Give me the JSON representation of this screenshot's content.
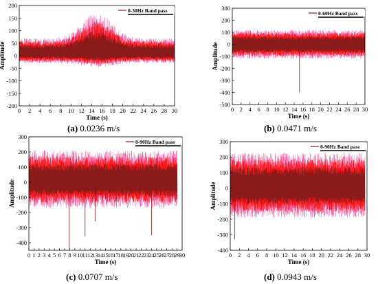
{
  "figures": [
    {
      "id": "a",
      "caption_tag": "(a)",
      "caption_value": "0.0236 m/s"
    },
    {
      "id": "b",
      "caption_tag": "(b)",
      "caption_value": "0.0471 m/s"
    },
    {
      "id": "c",
      "caption_tag": "(c)",
      "caption_value": "0.0707 m/s"
    },
    {
      "id": "d",
      "caption_tag": "(d)",
      "caption_value": "0.0943 m/s"
    }
  ],
  "colors": {
    "signal_dark": "#8b1a1a",
    "signal_bright": "#ff1a1a",
    "signal_pink": "#ff66aa",
    "axis": "#000000"
  },
  "chart_data": [
    {
      "type": "line",
      "xlabel": "Time (s)",
      "ylabel": "Amplitude",
      "xlim": [
        0,
        30
      ],
      "ylim": [
        -200,
        200
      ],
      "xticks": [
        0,
        2,
        4,
        6,
        8,
        10,
        12,
        14,
        16,
        18,
        20,
        22,
        24,
        26,
        28,
        30
      ],
      "yticks": [
        -200,
        -150,
        -100,
        -50,
        0,
        50,
        100,
        150,
        200
      ],
      "legend": "0-30Hz Band pass",
      "legend_position": "top-right",
      "series": [
        {
          "name": "0-30Hz Band pass",
          "x_range": [
            0,
            30
          ],
          "envelope": {
            "baseline": 10,
            "typical_peak": 60,
            "typical_trough": -40,
            "max_peak": 160,
            "max_peak_at": 15,
            "min_trough": -55
          }
        }
      ]
    },
    {
      "type": "line",
      "xlabel": "Time (s)",
      "ylabel": "Amplitude",
      "xlim": [
        0,
        30
      ],
      "ylim": [
        -500,
        300
      ],
      "xticks": [
        0,
        2,
        4,
        6,
        8,
        10,
        12,
        14,
        16,
        18,
        20,
        22,
        24,
        26,
        28,
        30
      ],
      "yticks": [
        -500,
        -400,
        -300,
        -200,
        -100,
        0,
        100,
        200,
        300
      ],
      "legend": "0-60Hz Band pass",
      "legend_position": "top-right",
      "series": [
        {
          "name": "0-60Hz Band pass",
          "x_range": [
            0,
            30
          ],
          "envelope": {
            "baseline": 0,
            "typical_peak": 120,
            "typical_trough": -120,
            "max_peak": 150,
            "min_trough": -400,
            "min_trough_at": 15.2
          }
        }
      ]
    },
    {
      "type": "line",
      "xlabel": "Time (s)",
      "ylabel": "Amplitude",
      "xlim": [
        0,
        30
      ],
      "ylim": [
        -450,
        300
      ],
      "xticks": [
        0,
        1,
        2,
        3,
        4,
        5,
        6,
        7,
        8,
        9,
        10,
        11,
        12,
        13,
        14,
        15,
        16,
        17,
        18,
        19,
        20,
        21,
        22,
        23,
        24,
        25,
        26,
        27,
        28,
        29,
        30
      ],
      "yticks": [
        -400,
        -300,
        -200,
        -100,
        0,
        100,
        200,
        300
      ],
      "legend": "0-90Hz Band pass",
      "legend_position": "top-right",
      "series": [
        {
          "name": "0-90Hz Band pass",
          "x_range": [
            0,
            29
          ],
          "envelope": {
            "baseline": 10,
            "typical_peak": 200,
            "typical_trough": -180,
            "max_peak": 215,
            "min_trough": -440,
            "min_trough_at": 7.9,
            "other_spikes": [
              {
                "x": 11,
                "y": -360
              },
              {
                "x": 24,
                "y": -350
              },
              {
                "x": 13,
                "y": -260
              }
            ]
          }
        }
      ]
    },
    {
      "type": "line",
      "xlabel": "Time (s)",
      "ylabel": "Amplitude",
      "xlim": [
        0,
        30
      ],
      "ylim": [
        -400,
        300
      ],
      "xticks": [
        0,
        2,
        4,
        6,
        8,
        10,
        12,
        14,
        16,
        18,
        20,
        22,
        24,
        26,
        28,
        30
      ],
      "yticks": [
        -400,
        -300,
        -200,
        -100,
        0,
        100,
        200,
        300
      ],
      "legend": "0-90Hz Band pass",
      "legend_position": "top-right",
      "series": [
        {
          "name": "0-90Hz Band pass",
          "x_range": [
            0,
            29.5
          ],
          "envelope": {
            "baseline": 10,
            "typical_peak": 220,
            "typical_trough": -200,
            "max_peak": 250,
            "min_trough": -330,
            "min_trough_at": 1
          }
        }
      ]
    }
  ]
}
